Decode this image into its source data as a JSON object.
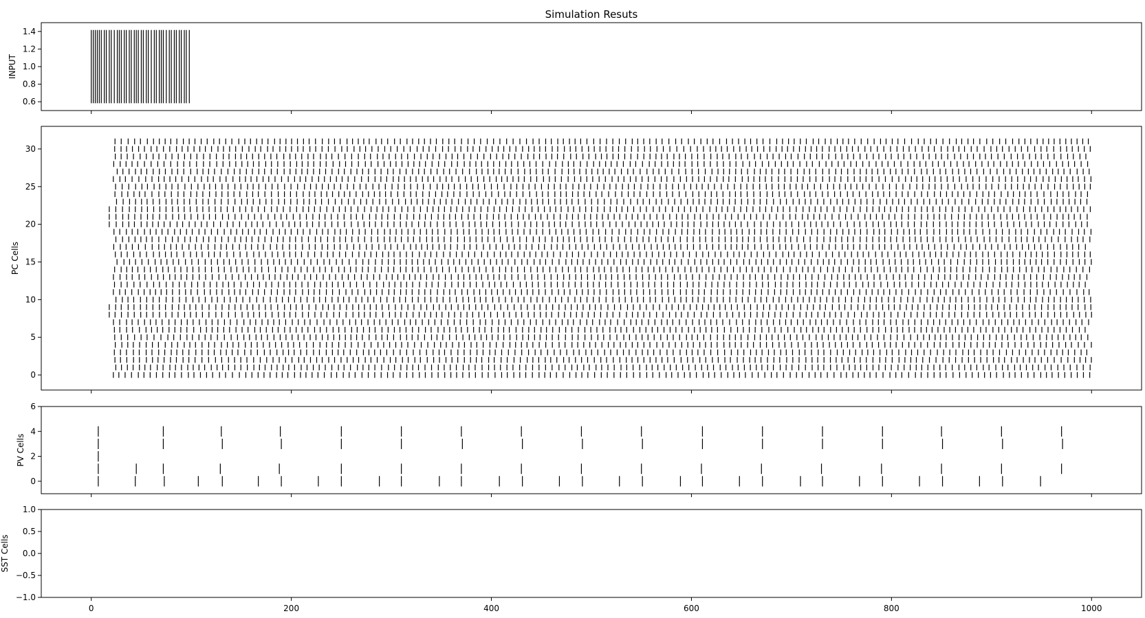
{
  "figure": {
    "title": "Simulation Resuts"
  },
  "chart_data": [
    {
      "type": "raster",
      "ylabel": "INPUT",
      "ylim": [
        0.5,
        1.5
      ],
      "yticks": [
        0.6,
        0.8,
        1.0,
        1.2,
        1.4
      ],
      "ytick_labels": [
        "0.6",
        "0.8",
        "1.0",
        "1.2",
        "1.4"
      ],
      "xlim": [
        -50,
        1050
      ],
      "xticks": [
        0,
        200,
        400,
        600,
        800,
        1000
      ],
      "show_xtick_labels": false,
      "rows": [
        {
          "y": 1.0,
          "times": [
            0,
            2,
            4,
            6,
            8,
            10,
            13,
            15,
            18,
            20,
            23,
            26,
            28,
            30,
            33,
            35,
            38,
            40,
            43,
            45,
            47,
            50,
            52,
            55,
            57,
            60,
            63,
            65,
            68,
            70,
            72,
            75,
            78,
            80,
            83,
            85,
            88,
            90,
            93,
            95,
            98
          ]
        }
      ]
    },
    {
      "type": "raster",
      "ylabel": "PC Cells",
      "ylim": [
        -2,
        33
      ],
      "yticks": [
        0,
        5,
        10,
        15,
        20,
        25,
        30
      ],
      "ytick_labels": [
        "0",
        "5",
        "10",
        "15",
        "20",
        "25",
        "30"
      ],
      "xlim": [
        -50,
        1050
      ],
      "xticks": [
        0,
        200,
        400,
        600,
        800,
        1000
      ],
      "show_xtick_labels": false,
      "population": {
        "cells": 32,
        "t_start": 18,
        "t_end": 1000,
        "approx_isi": 6.2
      }
    },
    {
      "type": "raster",
      "ylabel": "PV Cells",
      "ylim": [
        -1,
        6
      ],
      "yticks": [
        0,
        2,
        4,
        6
      ],
      "ytick_labels": [
        "0",
        "2",
        "4",
        "6"
      ],
      "xlim": [
        -50,
        1050
      ],
      "xticks": [
        0,
        200,
        400,
        600,
        800,
        1000
      ],
      "show_xtick_labels": false,
      "rows": [
        {
          "y": 0,
          "times": [
            7,
            44,
            73,
            107,
            131,
            167,
            190,
            227,
            250,
            288,
            310,
            348,
            370,
            408,
            431,
            468,
            491,
            528,
            551,
            589,
            611,
            648,
            671,
            709,
            731,
            768,
            791,
            828,
            851,
            888,
            911,
            949
          ]
        },
        {
          "y": 1,
          "times": [
            7,
            45,
            72,
            129,
            188,
            250,
            310,
            370,
            430,
            490,
            550,
            610,
            670,
            730,
            790,
            850,
            910,
            970
          ]
        },
        {
          "y": 2,
          "times": [
            7
          ]
        },
        {
          "y": 3,
          "times": [
            7,
            72,
            131,
            190,
            250,
            310,
            371,
            431,
            491,
            551,
            611,
            671,
            731,
            791,
            851,
            911,
            971
          ]
        },
        {
          "y": 4,
          "times": [
            7,
            72,
            130,
            189,
            250,
            310,
            370,
            430,
            490,
            550,
            611,
            671,
            731,
            791,
            850,
            910,
            970
          ]
        }
      ]
    },
    {
      "type": "raster",
      "ylabel": "SST Cells",
      "ylim": [
        -1,
        1
      ],
      "yticks": [
        -1.0,
        -0.5,
        0.0,
        0.5,
        1.0
      ],
      "ytick_labels": [
        "−1.0",
        "−0.5",
        "0.0",
        "0.5",
        "1.0"
      ],
      "xlim": [
        -50,
        1050
      ],
      "xticks": [
        0,
        200,
        400,
        600,
        800,
        1000
      ],
      "xtick_labels": [
        "0",
        "200",
        "400",
        "600",
        "800",
        "1000"
      ],
      "show_xtick_labels": true,
      "rows": []
    }
  ]
}
